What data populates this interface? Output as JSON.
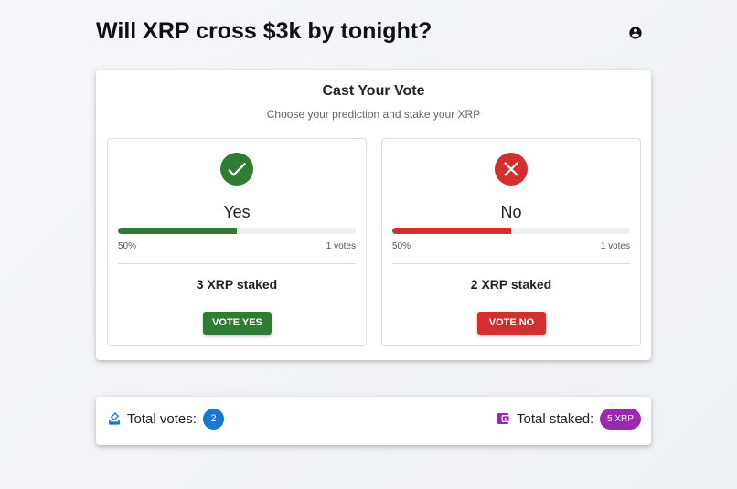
{
  "header": {
    "title": "Will XRP cross $3k by tonight?"
  },
  "vote_card": {
    "title": "Cast Your Vote",
    "subtitle": "Choose your prediction and stake your XRP",
    "options": [
      {
        "label": "Yes",
        "percent": 50,
        "percent_label": "50%",
        "votes_label": "1 votes",
        "staked": "3 XRP staked",
        "button": "VOTE YES",
        "color": "#2e7d32"
      },
      {
        "label": "No",
        "percent": 50,
        "percent_label": "50%",
        "votes_label": "1 votes",
        "staked": "2 XRP staked",
        "button": "VOTE NO",
        "color": "#d32f2f"
      }
    ]
  },
  "summary": {
    "votes_label": "Total votes:",
    "votes": "2",
    "staked_label": "Total staked:",
    "staked": "5 XRP"
  }
}
